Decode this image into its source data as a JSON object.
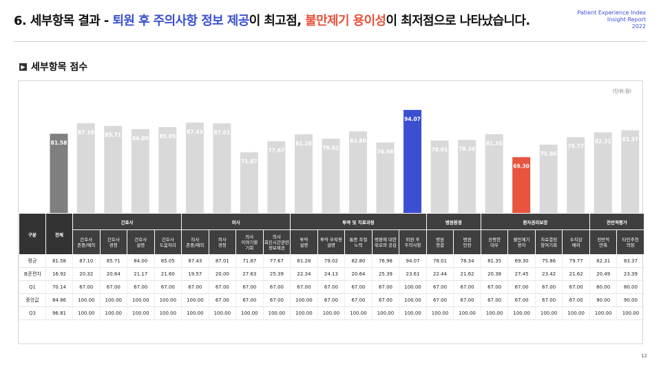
{
  "header": {
    "title_prefix": "6. 세부항목 결과 - ",
    "title_highlight_best": "퇴원 후 주의사항 정보 제공",
    "title_mid": "이 최고점, ",
    "title_highlight_worst": "불만제기 용이성",
    "title_suffix": "이 최저점으로 나타났습니다.",
    "brand_line1": "Patient Experience Index",
    "brand_line2": "Insight Report",
    "brand_line3": "2022"
  },
  "section": {
    "title": "세부항목 점수",
    "unit": "(단위:점)"
  },
  "colors": {
    "bar_default": "#d9d9d9",
    "bar_total": "#7f7f7f",
    "bar_best": "#3b4fd1",
    "bar_worst": "#e8543e",
    "table_header": "#3f3f3f"
  },
  "chart_data": {
    "type": "bar",
    "categories": [
      "전체",
      "간호사 존중/예의",
      "간호사 경청",
      "간호사 설명",
      "간호사 도움처리",
      "의사 존중/예의",
      "의사 경청",
      "의사 이야기할 기회",
      "의사 회진시간관련 정보제공",
      "투약 설명",
      "투약 부작용 설명",
      "통증 조절 노력",
      "병환에 대한 위로와 공감",
      "퇴원 후 주의사항",
      "병원 청결",
      "병원 안전",
      "공평한 대우",
      "불만제기 용이",
      "치료결정 참여기회",
      "수치감 배려",
      "전반적 만족",
      "타인추천 의향"
    ],
    "values": [
      81.58,
      87.1,
      85.71,
      84.0,
      85.05,
      87.43,
      87.01,
      71.87,
      77.67,
      81.28,
      79.02,
      82.8,
      76.98,
      94.07,
      78.01,
      78.34,
      81.35,
      69.3,
      75.86,
      79.77,
      82.31,
      83.37
    ],
    "highlight": {
      "total_index": 0,
      "best_index": 13,
      "worst_index": 17
    }
  },
  "table": {
    "kind_label": "구분",
    "total_label": "전체",
    "groups": [
      {
        "label": "간호사",
        "span": 4
      },
      {
        "label": "의사",
        "span": 4
      },
      {
        "label": "투약 및 치료과정",
        "span": 5
      },
      {
        "label": "병원환경",
        "span": 2
      },
      {
        "label": "환자권리보장",
        "span": 4
      },
      {
        "label": "전반적평가",
        "span": 2
      }
    ],
    "columns": [
      [
        "간호사",
        "존중/예의"
      ],
      [
        "간호사",
        "경청"
      ],
      [
        "간호사",
        "설명"
      ],
      [
        "간호사",
        "도움처리"
      ],
      [
        "의사",
        "존중/예의"
      ],
      [
        "의사",
        "경청"
      ],
      [
        "의사",
        "이야기할",
        "기회"
      ],
      [
        "의사",
        "회진시간관련",
        "정보제공"
      ],
      [
        "투약",
        "설명"
      ],
      [
        "투약 부작용",
        "설명"
      ],
      [
        "통증 조절",
        "노력"
      ],
      [
        "병환에 대한",
        "위로와 공감"
      ],
      [
        "퇴원 후",
        "주의사항"
      ],
      [
        "병원",
        "청결"
      ],
      [
        "병원",
        "안전"
      ],
      [
        "공평한",
        "대우"
      ],
      [
        "불만제기",
        "용이"
      ],
      [
        "치료결정",
        "참여기회"
      ],
      [
        "수치감",
        "배려"
      ],
      [
        "전반적",
        "만족"
      ],
      [
        "타인추천",
        "의향"
      ]
    ],
    "rows": [
      {
        "label": "평균",
        "cells": [
          "81.58",
          "87.10",
          "85.71",
          "84.00",
          "85.05",
          "87.43",
          "87.01",
          "71.87",
          "77.67",
          "81.28",
          "79.02",
          "82.80",
          "76.98",
          "94.07",
          "78.01",
          "78.34",
          "81.35",
          "69.30",
          "75.86",
          "79.77",
          "82.31",
          "83.37"
        ]
      },
      {
        "label": "표준편차",
        "cells": [
          "16.92",
          "20.32",
          "20.84",
          "21.17",
          "21.60",
          "19.57",
          "20.00",
          "27.63",
          "25.39",
          "22.34",
          "24.13",
          "20.64",
          "25.39",
          "23.61",
          "22.44",
          "21.62",
          "20.38",
          "27.45",
          "23.42",
          "21.62",
          "20.49",
          "23.39"
        ]
      },
      {
        "label": "Q1",
        "cells": [
          "70.14",
          "67.00",
          "67.00",
          "67.00",
          "67.00",
          "67.00",
          "67.00",
          "67.00",
          "67.00",
          "67.00",
          "67.00",
          "67.00",
          "67.00",
          "100.00",
          "67.00",
          "67.00",
          "67.00",
          "67.00",
          "67.00",
          "67.00",
          "80.00",
          "80.00"
        ]
      },
      {
        "label": "중앙값",
        "cells": [
          "84.86",
          "100.00",
          "100.00",
          "100.00",
          "100.00",
          "100.00",
          "67.00",
          "67.00",
          "67.00",
          "100.00",
          "67.00",
          "67.00",
          "67.00",
          "100.00",
          "67.00",
          "67.00",
          "67.00",
          "67.00",
          "67.00",
          "67.00",
          "90.00",
          "90.00"
        ]
      },
      {
        "label": "Q3",
        "cells": [
          "96.81",
          "100.00",
          "100.00",
          "100.00",
          "100.00",
          "100.00",
          "100.00",
          "100.00",
          "100.00",
          "100.00",
          "100.00",
          "100.00",
          "100.00",
          "100.00",
          "100.00",
          "100.00",
          "100.00",
          "100.00",
          "100.00",
          "100.00",
          "100.00",
          "100.00"
        ]
      }
    ]
  },
  "footer": {
    "page_number": "12"
  }
}
